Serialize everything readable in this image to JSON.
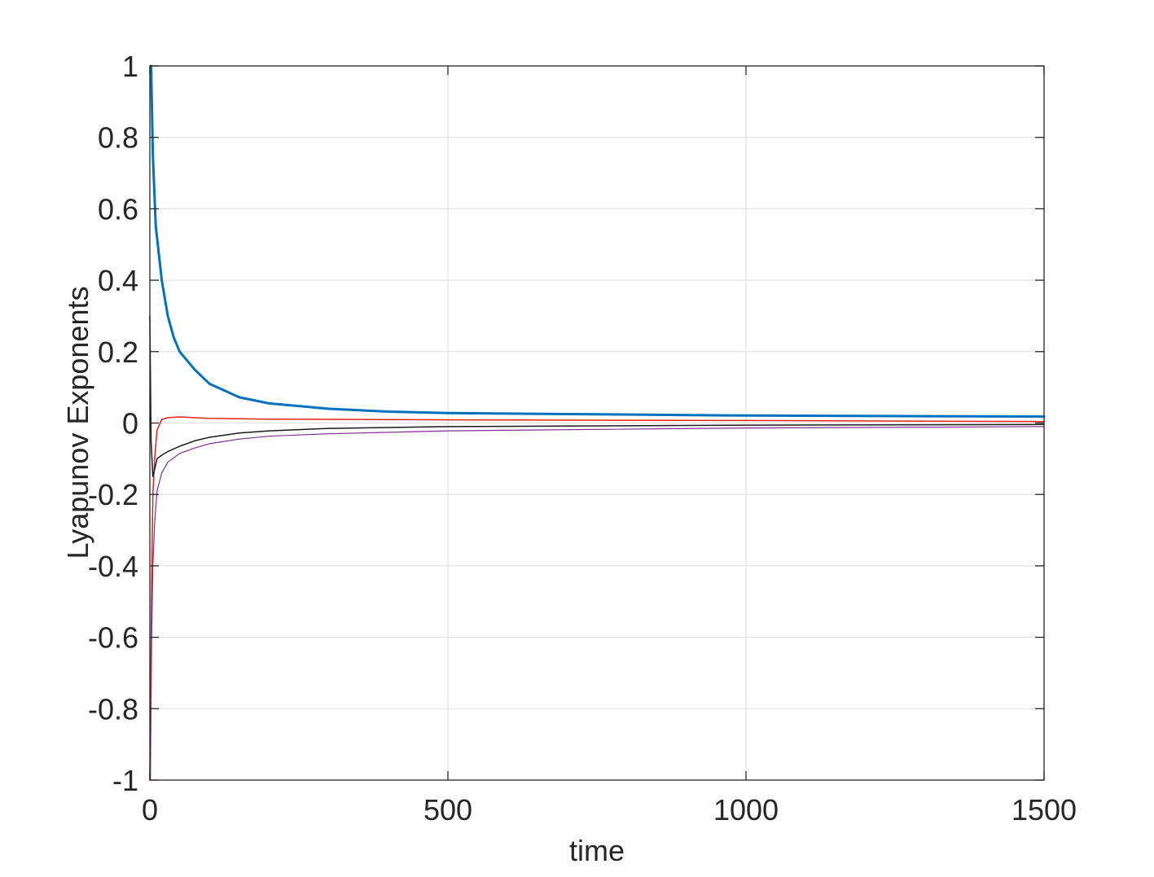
{
  "chart_data": {
    "type": "line",
    "title": "",
    "xlabel": "time",
    "ylabel": "Lyapunov Exponents",
    "xlim": [
      0,
      1500
    ],
    "ylim": [
      -1,
      1
    ],
    "xticks": [
      0,
      500,
      1000,
      1500
    ],
    "xtick_labels": [
      "0",
      "500",
      "1000",
      "1500"
    ],
    "yticks": [
      -1,
      -0.8,
      -0.6,
      -0.4,
      -0.2,
      0,
      0.2,
      0.4,
      0.6,
      0.8,
      1
    ],
    "ytick_labels": [
      "-1",
      "-0.8",
      "-0.6",
      "-0.4",
      "-0.2",
      "0",
      "0.2",
      "0.4",
      "0.6",
      "0.8",
      "1"
    ],
    "grid": true,
    "legend": "none",
    "series": [
      {
        "color": "#0072BD",
        "stroke_width": 3,
        "x": [
          2,
          5,
          10,
          20,
          30,
          40,
          50,
          75,
          100,
          150,
          200,
          300,
          400,
          500,
          700,
          1000,
          1500
        ],
        "y": [
          1.0,
          0.75,
          0.55,
          0.4,
          0.3,
          0.24,
          0.2,
          0.15,
          0.11,
          0.072,
          0.055,
          0.04,
          0.032,
          0.028,
          0.025,
          0.021,
          0.018
        ]
      },
      {
        "color": "#E32119",
        "stroke_width": 1.5,
        "x": [
          0,
          1,
          3,
          5,
          8,
          12,
          20,
          30,
          50,
          75,
          100,
          200,
          500,
          1000,
          1500
        ],
        "y": [
          -1.0,
          -0.8,
          -0.45,
          -0.2,
          -0.1,
          -0.02,
          0.01,
          0.015,
          0.017,
          0.015,
          0.013,
          0.011,
          0.009,
          0.007,
          0.004
        ]
      },
      {
        "color": "#1a1a1a",
        "stroke_width": 1.5,
        "x": [
          0,
          2,
          5,
          8,
          12,
          20,
          30,
          50,
          75,
          100,
          150,
          200,
          300,
          500,
          1000,
          1500
        ],
        "y": [
          0.3,
          -0.05,
          -0.15,
          -0.13,
          -0.1,
          -0.09,
          -0.08,
          -0.065,
          -0.05,
          -0.04,
          -0.028,
          -0.022,
          -0.015,
          -0.01,
          -0.006,
          -0.004
        ]
      },
      {
        "color": "#7E2F8E",
        "stroke_width": 1.2,
        "x": [
          1,
          3,
          5,
          8,
          12,
          20,
          30,
          50,
          75,
          100,
          150,
          200,
          300,
          500,
          1000,
          1500
        ],
        "y": [
          -1.0,
          -0.6,
          -0.4,
          -0.28,
          -0.19,
          -0.14,
          -0.11,
          -0.085,
          -0.07,
          -0.058,
          -0.045,
          -0.037,
          -0.03,
          -0.022,
          -0.014,
          -0.01
        ]
      }
    ]
  }
}
